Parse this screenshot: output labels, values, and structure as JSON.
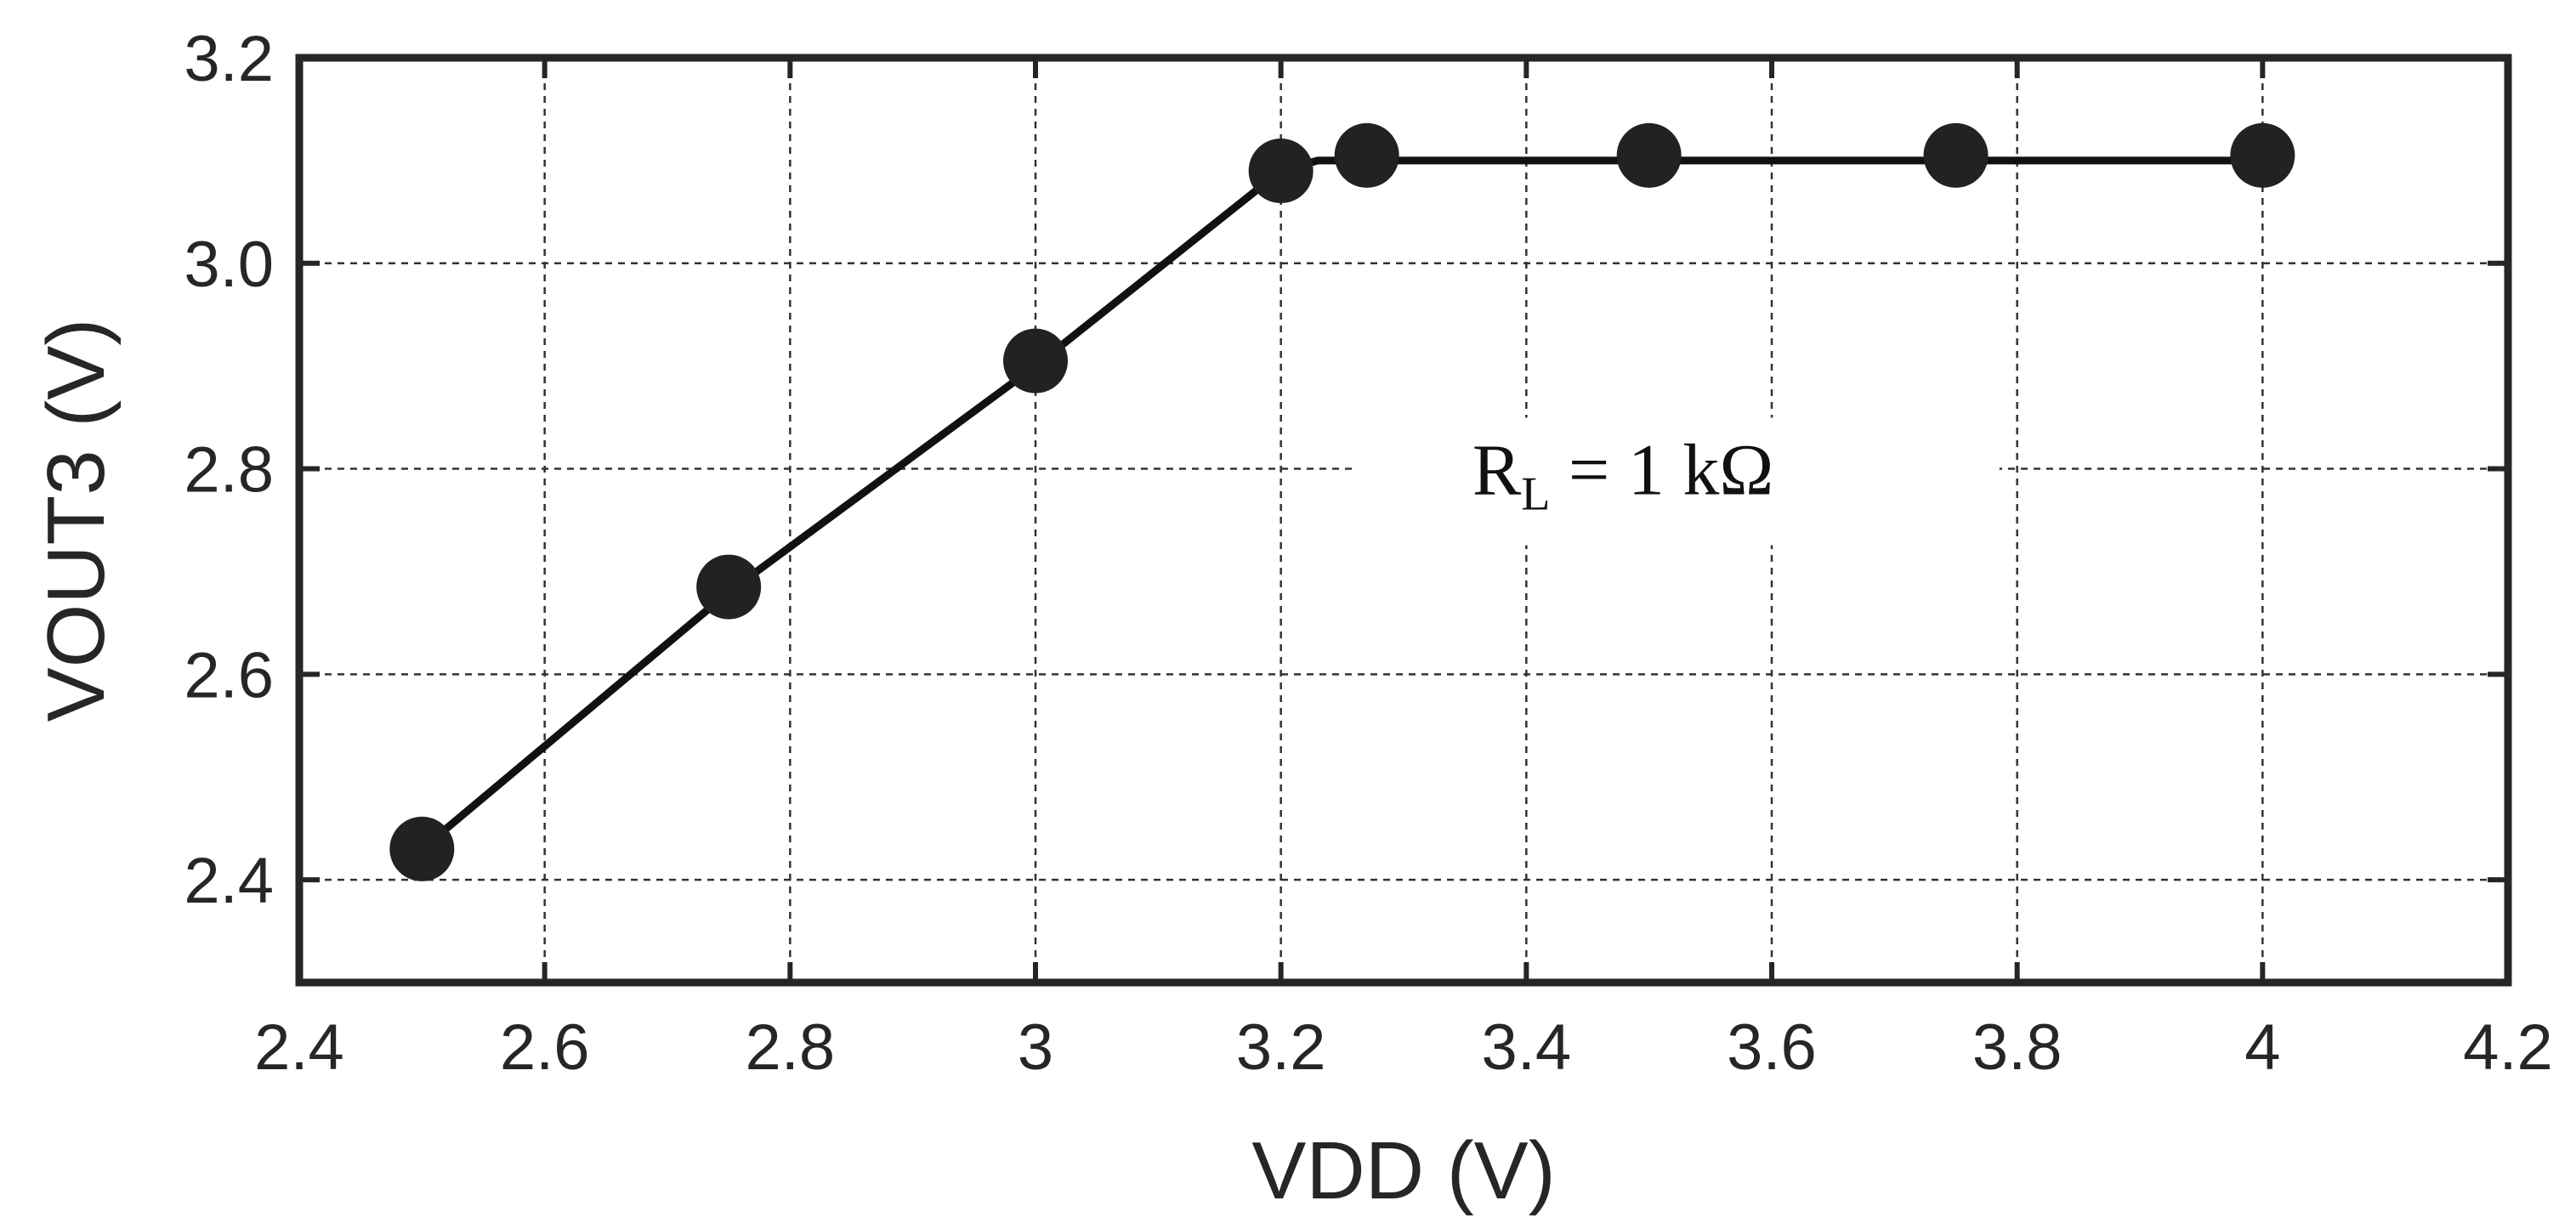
{
  "chart_data": {
    "type": "line",
    "title": "",
    "xlabel": "VDD (V)",
    "ylabel": "VOUT3 (V)",
    "xlim": [
      2.4,
      4.2
    ],
    "ylim": [
      2.3,
      3.2
    ],
    "xticks": [
      2.4,
      2.6,
      2.8,
      3.0,
      3.2,
      3.4,
      3.6,
      3.8,
      4.0,
      4.2
    ],
    "xtick_labels": [
      "2.4",
      "2.6",
      "2.8",
      "3",
      "3.2",
      "3.4",
      "3.6",
      "3.8",
      "4",
      "4.2"
    ],
    "yticks": [
      2.4,
      2.6,
      2.8,
      3.0,
      3.2
    ],
    "ytick_labels": [
      "2.4",
      "2.6",
      "2.8",
      "3.0",
      "3.2"
    ],
    "grid": true,
    "legend": "none",
    "series": [
      {
        "kind": "line",
        "color": "#111111",
        "x": [
          2.5,
          2.75,
          3.0,
          3.2,
          3.23,
          4.0
        ],
        "y": [
          2.43,
          2.68,
          2.9,
          3.09,
          3.1,
          3.1
        ]
      },
      {
        "kind": "markers",
        "color": "#222222",
        "x": [
          2.5,
          2.75,
          3.0,
          3.2,
          3.27,
          3.5,
          3.75,
          4.0
        ],
        "y": [
          2.43,
          2.685,
          2.905,
          3.09,
          3.105,
          3.105,
          3.105,
          3.105
        ]
      }
    ],
    "annotation": {
      "main": "R",
      "subscript": "L",
      "rest": " = 1 kΩ",
      "x": 3.55,
      "y": 2.8
    }
  }
}
